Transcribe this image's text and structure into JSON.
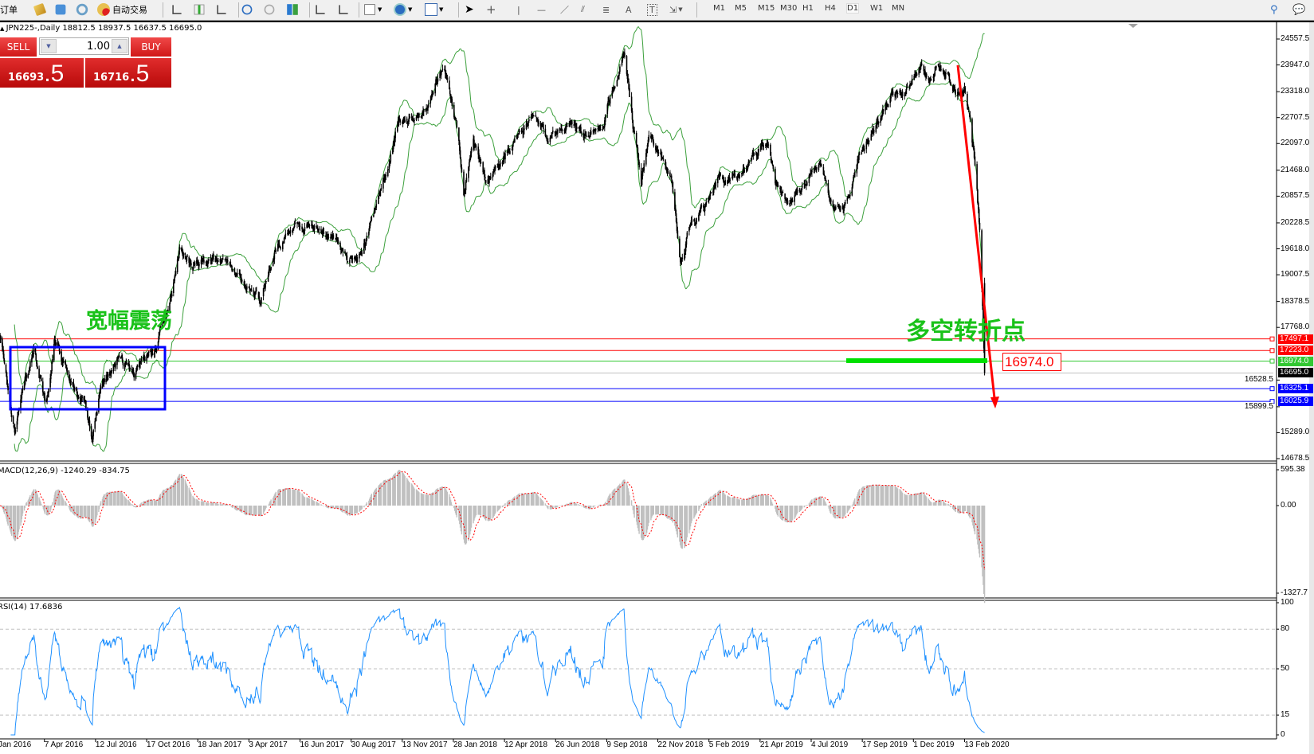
{
  "toolbar": {
    "new_order_label": "订单",
    "auto_trading_label": "自动交易",
    "timeframes": [
      "M1",
      "M5",
      "M15",
      "M30",
      "H1",
      "H4",
      "D1",
      "W1",
      "MN"
    ],
    "active_timeframe": "D1",
    "icons": [
      "new-order-icon",
      "open-data-folder-icon",
      "navigator-icon",
      "signal-icon",
      "auto-trading-icon",
      "bar-chart-icon",
      "candlestick-icon",
      "line-chart-icon",
      "zoom-in-icon",
      "zoom-out-icon",
      "tile-windows-icon",
      "auto-scroll-icon",
      "chart-shift-icon",
      "indicators-icon",
      "periods-icon",
      "templates-icon",
      "cursor-icon",
      "crosshair-icon",
      "vertical-line-icon",
      "horizontal-line-icon",
      "trendline-icon",
      "equidistant-channel-icon",
      "fibonacci-icon",
      "text-icon",
      "text-label-icon",
      "arrows-icon",
      "search-icon",
      "chat-icon"
    ]
  },
  "symbol_info": "JPN225-,Daily  18812.5 18937.5 16637.5 16695.0",
  "trade_panel": {
    "sell_label": "SELL",
    "buy_label": "BUY",
    "lot": "1.00",
    "sell_price_main": "16693",
    "sell_price_frac": ".5",
    "buy_price_main": "16716",
    "buy_price_frac": ".5"
  },
  "price_axis": [
    "24557.5",
    "23947.0",
    "23318.0",
    "22707.5",
    "22097.0",
    "21468.0",
    "20857.5",
    "20228.5",
    "19618.0",
    "19007.5",
    "18378.5",
    "17768.0",
    "16528.5",
    "15899.5",
    "15289.0",
    "14678.5"
  ],
  "levels": [
    {
      "price": "17497.1",
      "color": "#ff0000",
      "badge": "#ff0000"
    },
    {
      "price": "17223.0",
      "color": "#ff0000",
      "badge": "#ff0000"
    },
    {
      "price": "16974.0",
      "color": "#32c832",
      "badge": "#32c832"
    },
    {
      "price": "16695.0",
      "color": "#c0c0c0",
      "badge": "#000000"
    },
    {
      "price": "16325.1",
      "color": "#0000ff",
      "badge": "#0000ff"
    },
    {
      "price": "16025.9",
      "color": "#0000ff",
      "badge": "#0000ff"
    }
  ],
  "annotations": {
    "range_text": "宽幅震荡",
    "turning_text": "多空转折点",
    "turning_price": "16974.0"
  },
  "macd": {
    "header": "MACD(12,26,9) -1240.29 -834.75",
    "axis": [
      "595.38",
      "0.00",
      "-1327.7"
    ]
  },
  "rsi": {
    "header": "RSI(14) 17.6836",
    "axis": [
      "100",
      "80",
      "50",
      "15",
      "0"
    ],
    "levels": [
      80,
      50,
      15
    ]
  },
  "date_axis": [
    "Jan 2016",
    "7 Apr 2016",
    "12 Jul 2016",
    "17 Oct 2016",
    "18 Jan 2017",
    "3 Apr 2017",
    "16 Jun 2017",
    "30 Aug 2017",
    "13 Nov 2017",
    "28 Jan 2018",
    "12 Apr 2018",
    "26 Jun 2018",
    "9 Sep 2018",
    "22 Nov 2018",
    "5 Feb 2019",
    "21 Apr 2019",
    "4 Jul 2019",
    "17 Sep 2019",
    "1 Dec 2019",
    "13 Feb 2020"
  ],
  "colors": {
    "candles": "#000000",
    "bollinger": "#3ca03c",
    "macd_hist": "#c0c0c0",
    "macd_signal": "#ff0000",
    "rsi": "#1e90ff",
    "range_box": "#0000ff",
    "arrow": "#ff0000",
    "annotation_text": "#19c219"
  },
  "chart_data": {
    "type": "candlestick",
    "symbol": "JPN225-",
    "timeframe": "Daily",
    "last_bar": {
      "open": 18812.5,
      "high": 18937.5,
      "low": 16637.5,
      "close": 16695.0
    },
    "price_range": [
      14678.5,
      24557.5
    ],
    "indicators": [
      "Bollinger Bands(20,2)",
      "MACD(12,26,9)",
      "RSI(14)"
    ],
    "price_path": [
      {
        "date": "2016-01-14",
        "price": 17500
      },
      {
        "date": "2016-02-11",
        "price": 15200
      },
      {
        "date": "2016-03-01",
        "price": 16500
      },
      {
        "date": "2016-03-18",
        "price": 17200
      },
      {
        "date": "2016-04-10",
        "price": 15900
      },
      {
        "date": "2016-04-26",
        "price": 17500
      },
      {
        "date": "2016-05-19",
        "price": 16700
      },
      {
        "date": "2016-06-20",
        "price": 16000
      },
      {
        "date": "2016-07-06",
        "price": 15100
      },
      {
        "date": "2016-07-22",
        "price": 16400
      },
      {
        "date": "2016-08-22",
        "price": 17000
      },
      {
        "date": "2016-09-23",
        "price": 16700
      },
      {
        "date": "2016-11-01",
        "price": 17300
      },
      {
        "date": "2016-11-16",
        "price": 17800
      },
      {
        "date": "2016-12-02",
        "price": 18500
      },
      {
        "date": "2016-12-17",
        "price": 19700
      },
      {
        "date": "2017-01-09",
        "price": 19200
      },
      {
        "date": "2017-02-17",
        "price": 19400
      },
      {
        "date": "2017-03-19",
        "price": 19000
      },
      {
        "date": "2017-04-19",
        "price": 18400
      },
      {
        "date": "2017-05-13",
        "price": 19700
      },
      {
        "date": "2017-06-06",
        "price": 20100
      },
      {
        "date": "2017-07-13",
        "price": 20100
      },
      {
        "date": "2017-08-07",
        "price": 19900
      },
      {
        "date": "2017-08-25",
        "price": 19300
      },
      {
        "date": "2017-09-13",
        "price": 19400
      },
      {
        "date": "2017-10-01",
        "price": 20300
      },
      {
        "date": "2017-10-19",
        "price": 21300
      },
      {
        "date": "2017-11-07",
        "price": 22600
      },
      {
        "date": "2017-11-25",
        "price": 22600
      },
      {
        "date": "2017-12-20",
        "price": 22800
      },
      {
        "date": "2018-01-08",
        "price": 23800
      },
      {
        "date": "2018-01-20",
        "price": 23700
      },
      {
        "date": "2018-02-05",
        "price": 22300
      },
      {
        "date": "2018-02-12",
        "price": 21000
      },
      {
        "date": "2018-02-26",
        "price": 22100
      },
      {
        "date": "2018-03-16",
        "price": 21200
      },
      {
        "date": "2018-04-04",
        "price": 21600
      },
      {
        "date": "2018-04-28",
        "price": 22200
      },
      {
        "date": "2018-05-22",
        "price": 22700
      },
      {
        "date": "2018-06-16",
        "price": 22200
      },
      {
        "date": "2018-07-17",
        "price": 22600
      },
      {
        "date": "2018-08-11",
        "price": 22300
      },
      {
        "date": "2018-09-04",
        "price": 22500
      },
      {
        "date": "2018-09-22",
        "price": 23700
      },
      {
        "date": "2018-10-04",
        "price": 24200
      },
      {
        "date": "2018-10-17",
        "price": 22500
      },
      {
        "date": "2018-10-29",
        "price": 21200
      },
      {
        "date": "2018-11-10",
        "price": 22200
      },
      {
        "date": "2018-12-11",
        "price": 21500
      },
      {
        "date": "2018-12-25",
        "price": 19200
      },
      {
        "date": "2019-01-10",
        "price": 20300
      },
      {
        "date": "2019-01-29",
        "price": 20600
      },
      {
        "date": "2019-02-22",
        "price": 21300
      },
      {
        "date": "2019-03-19",
        "price": 21200
      },
      {
        "date": "2019-04-13",
        "price": 21800
      },
      {
        "date": "2019-05-01",
        "price": 22200
      },
      {
        "date": "2019-05-13",
        "price": 21200
      },
      {
        "date": "2019-05-31",
        "price": 20600
      },
      {
        "date": "2019-06-24",
        "price": 21200
      },
      {
        "date": "2019-07-19",
        "price": 21700
      },
      {
        "date": "2019-08-06",
        "price": 20500
      },
      {
        "date": "2019-08-25",
        "price": 20600
      },
      {
        "date": "2019-09-12",
        "price": 21800
      },
      {
        "date": "2019-10-13",
        "price": 22700
      },
      {
        "date": "2019-10-31",
        "price": 23300
      },
      {
        "date": "2019-11-19",
        "price": 23300
      },
      {
        "date": "2019-12-13",
        "price": 23900
      },
      {
        "date": "2019-12-25",
        "price": 23600
      },
      {
        "date": "2020-01-12",
        "price": 23900
      },
      {
        "date": "2020-01-31",
        "price": 23300
      },
      {
        "date": "2020-02-13",
        "price": 23500
      },
      {
        "date": "2020-02-21",
        "price": 22800
      },
      {
        "date": "2020-03-01",
        "price": 21300
      },
      {
        "date": "2020-03-07",
        "price": 19800
      },
      {
        "date": "2020-03-13",
        "price": 16695
      }
    ]
  }
}
